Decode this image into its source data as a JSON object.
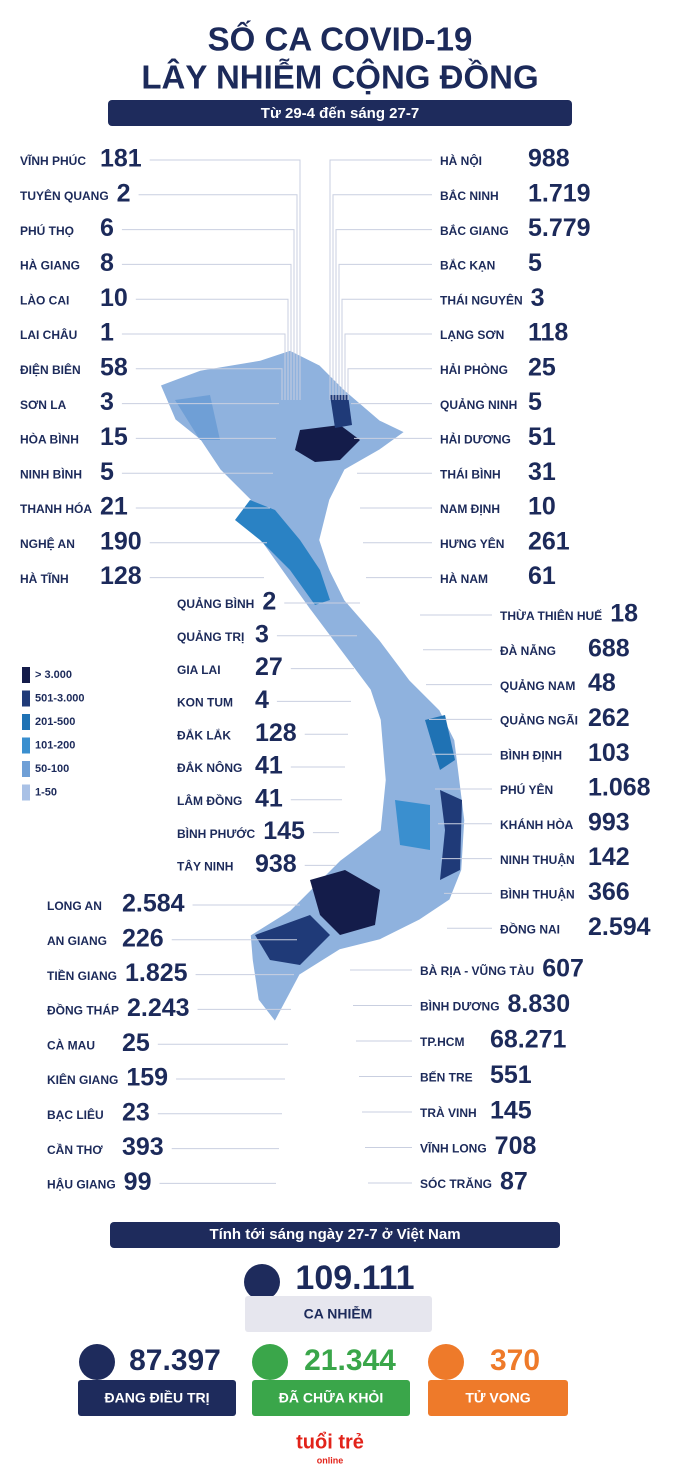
{
  "header": {
    "title_lines": [
      "SỐ CA COVID-19",
      "LÂY NHIỄM CỘNG ĐỒNG"
    ],
    "subtitle": "Từ 29-4 đến sáng 27-7"
  },
  "groups": {
    "left_north": [
      {
        "name": "VĨNH PHÚC",
        "count": "181"
      },
      {
        "name": "TUYÊN QUANG",
        "count": "2"
      },
      {
        "name": "PHÚ THỌ",
        "count": "6"
      },
      {
        "name": "HÀ GIANG",
        "count": "8"
      },
      {
        "name": "LÀO CAI",
        "count": "10"
      },
      {
        "name": "LAI CHÂU",
        "count": "1"
      },
      {
        "name": "ĐIỆN BIÊN",
        "count": "58"
      },
      {
        "name": "SƠN LA",
        "count": "3"
      },
      {
        "name": "HÒA BÌNH",
        "count": "15"
      },
      {
        "name": "NINH BÌNH",
        "count": "5"
      },
      {
        "name": "THANH HÓA",
        "count": "21"
      },
      {
        "name": "NGHỆ AN",
        "count": "190"
      },
      {
        "name": "HÀ TĨNH",
        "count": "128"
      }
    ],
    "right_north": [
      {
        "name": "HÀ NỘI",
        "count": "988"
      },
      {
        "name": "BẮC NINH",
        "count": "1.719"
      },
      {
        "name": "BẮC GIANG",
        "count": "5.779"
      },
      {
        "name": "BẮC KẠN",
        "count": "5"
      },
      {
        "name": "THÁI NGUYÊN",
        "count": "3"
      },
      {
        "name": "LẠNG SƠN",
        "count": "118"
      },
      {
        "name": "HẢI PHÒNG",
        "count": "25"
      },
      {
        "name": "QUẢNG NINH",
        "count": "5"
      },
      {
        "name": "HẢI DƯƠNG",
        "count": "51"
      },
      {
        "name": "THÁI BÌNH",
        "count": "31"
      },
      {
        "name": "NAM ĐỊNH",
        "count": "10"
      },
      {
        "name": "HƯNG YÊN",
        "count": "261"
      },
      {
        "name": "HÀ NAM",
        "count": "61"
      }
    ],
    "left_central": [
      {
        "name": "QUẢNG BÌNH",
        "count": "2"
      },
      {
        "name": "QUẢNG TRỊ",
        "count": "3"
      },
      {
        "name": "GIA LAI",
        "count": "27"
      },
      {
        "name": "KON TUM",
        "count": "4"
      },
      {
        "name": "ĐẮK LẮK",
        "count": "128"
      },
      {
        "name": "ĐẮK NÔNG",
        "count": "41"
      },
      {
        "name": "LÂM ĐỒNG",
        "count": "41"
      },
      {
        "name": "BÌNH PHƯỚC",
        "count": "145"
      },
      {
        "name": "TÂY NINH",
        "count": "938"
      }
    ],
    "right_central": [
      {
        "name": "THỪA THIÊN HUẾ",
        "count": "18"
      },
      {
        "name": "ĐÀ NẴNG",
        "count": "688"
      },
      {
        "name": "QUẢNG NAM",
        "count": "48"
      },
      {
        "name": "QUẢNG NGÃI",
        "count": "262"
      },
      {
        "name": "BÌNH ĐỊNH",
        "count": "103"
      },
      {
        "name": "PHÚ YÊN",
        "count": "1.068"
      },
      {
        "name": "KHÁNH HÒA",
        "count": "993"
      },
      {
        "name": "NINH THUẬN",
        "count": "142"
      },
      {
        "name": "BÌNH THUẬN",
        "count": "366"
      },
      {
        "name": "ĐỒNG NAI",
        "count": "2.594"
      }
    ],
    "left_south": [
      {
        "name": "LONG AN",
        "count": "2.584"
      },
      {
        "name": "AN GIANG",
        "count": "226"
      },
      {
        "name": "TIỀN GIANG",
        "count": "1.825"
      },
      {
        "name": "ĐỒNG THÁP",
        "count": "2.243"
      },
      {
        "name": "CÀ MAU",
        "count": "25"
      },
      {
        "name": "KIÊN GIANG",
        "count": "159"
      },
      {
        "name": "BẠC LIÊU",
        "count": "23"
      },
      {
        "name": "CẦN THƠ",
        "count": "393"
      },
      {
        "name": "HẬU GIANG",
        "count": "99"
      }
    ],
    "right_south": [
      {
        "name": "BÀ RỊA - VŨNG TÀU",
        "count": "607"
      },
      {
        "name": "BÌNH DƯƠNG",
        "count": "8.830"
      },
      {
        "name": "TP.HCM",
        "count": "68.271"
      },
      {
        "name": "BẾN TRE",
        "count": "551"
      },
      {
        "name": "TRÀ VINH",
        "count": "145"
      },
      {
        "name": "VĨNH LONG",
        "count": "708"
      },
      {
        "name": "SÓC TRĂNG",
        "count": "87"
      }
    ]
  },
  "legend": [
    {
      "label": "> 3.000",
      "color": "#141c4a"
    },
    {
      "label": "501-3.000",
      "color": "#1f3a78"
    },
    {
      "label": "201-500",
      "color": "#1f72b4"
    },
    {
      "label": "101-200",
      "color": "#3a8fcf"
    },
    {
      "label": "50-100",
      "color": "#6f9fd6"
    },
    {
      "label": "1-50",
      "color": "#a9c1e6"
    }
  ],
  "summary": {
    "banner": "Tính tới sáng ngày 27-7 ở Việt Nam",
    "total": {
      "value": "109.111",
      "label": "CA NHIỄM"
    },
    "treating": {
      "value": "87.397",
      "label": "ĐANG ĐIỀU TRỊ"
    },
    "recovered": {
      "value": "21.344",
      "label": "ĐÃ CHỮA KHỎI"
    },
    "deaths": {
      "value": "370",
      "label": "TỬ VONG"
    }
  },
  "logo": {
    "brand": "tuổi trẻ",
    "sub": "online"
  }
}
